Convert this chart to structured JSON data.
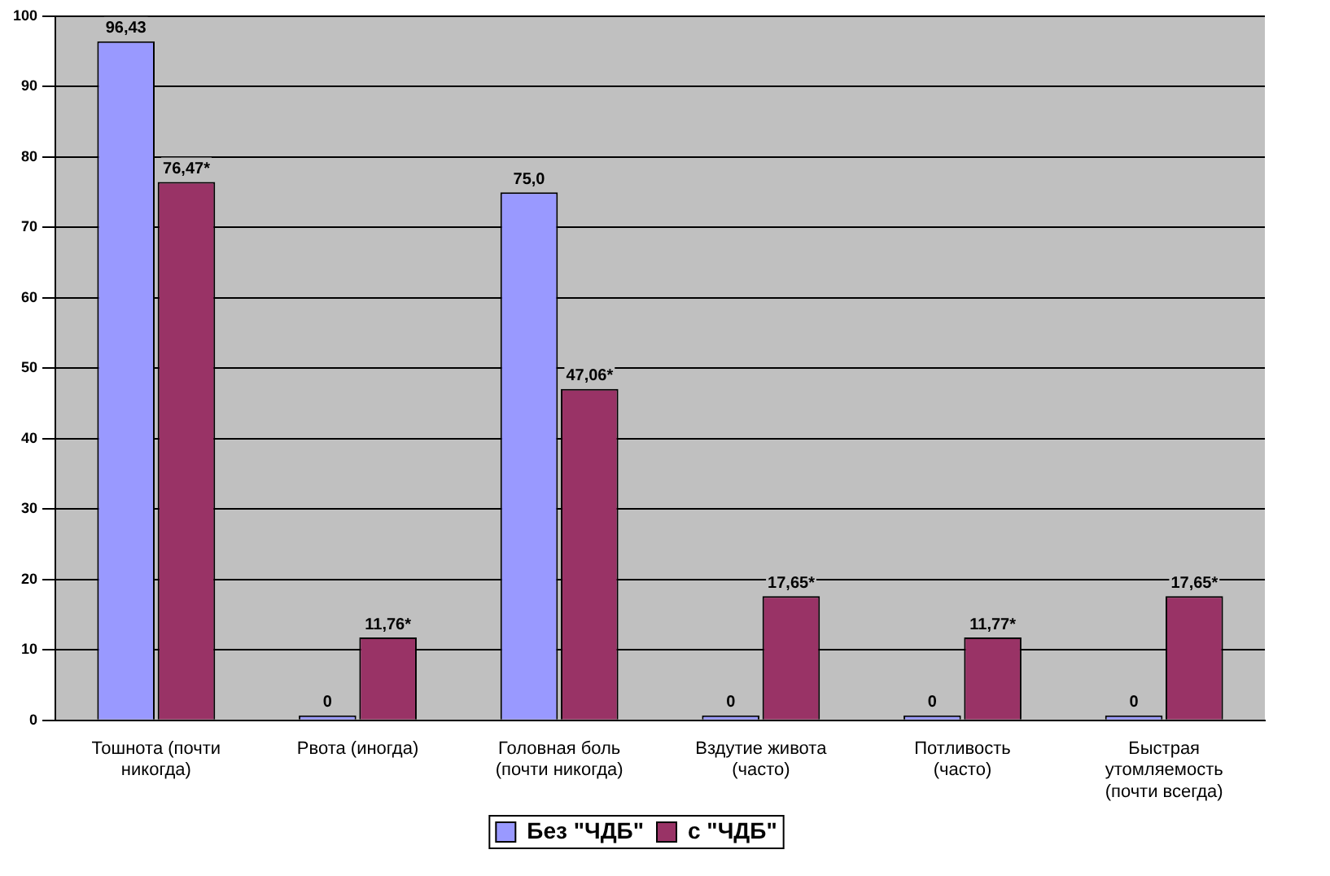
{
  "chart_data": {
    "type": "bar",
    "categories": [
      "Тошнота (почти никогда)",
      "Рвота (иногда)",
      "Головная боль (почти никогда)",
      "Вздутие живота (часто)",
      "Потливость (часто)",
      "Быстрая утомляемость (почти всегда)"
    ],
    "series": [
      {
        "name": "Без \"ЧДБ\"",
        "color": "#9999ff",
        "values": [
          96.43,
          0,
          75.0,
          0,
          0,
          0
        ],
        "value_labels": [
          "96,43",
          "0",
          "75,0",
          "0",
          "0",
          "0"
        ]
      },
      {
        "name": "с \"ЧДБ\"",
        "color": "#993366",
        "values": [
          76.47,
          11.76,
          47.06,
          17.65,
          11.77,
          17.65
        ],
        "value_labels": [
          "76,47*",
          "11,76*",
          "47,06*",
          "17,65*",
          "11,77*",
          "17,65*"
        ]
      }
    ],
    "ylim": [
      0,
      100
    ],
    "yticks": [
      0,
      10,
      20,
      30,
      40,
      50,
      60,
      70,
      80,
      90,
      100
    ],
    "grid": "y",
    "legend": "bottom"
  }
}
